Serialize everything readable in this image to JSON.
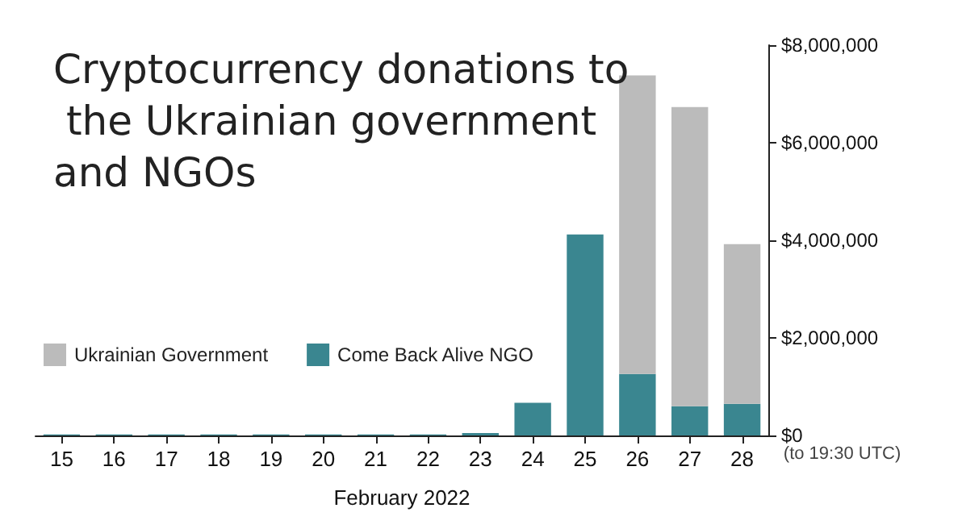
{
  "chart_data": {
    "type": "bar",
    "title": "Cryptocurrency donations to the Ukrainian government and NGOs",
    "xlabel": "February 2022",
    "categories": [
      "15",
      "16",
      "17",
      "18",
      "19",
      "20",
      "21",
      "22",
      "23",
      "24",
      "25",
      "26",
      "27",
      "28"
    ],
    "stacked": true,
    "series": [
      {
        "name": "Come Back Alive NGO",
        "color": "#3a8690",
        "values": [
          20000,
          20000,
          20000,
          20000,
          20000,
          20000,
          20000,
          20000,
          50000,
          670000,
          4120000,
          1260000,
          600000,
          650000
        ]
      },
      {
        "name": "Ukrainian Government",
        "color": "#bbbbbb",
        "values": [
          0,
          0,
          0,
          0,
          0,
          0,
          0,
          0,
          0,
          0,
          0,
          6120000,
          6130000,
          3270000
        ]
      }
    ],
    "ylim": [
      0,
      8000000
    ],
    "yticks": [
      {
        "value": 0,
        "label": "$0"
      },
      {
        "value": 2000000,
        "label": "$2,000,000"
      },
      {
        "value": 4000000,
        "label": "$4,000,000"
      },
      {
        "value": 6000000,
        "label": "$6,000,000"
      },
      {
        "value": 8000000,
        "label": "$8,000,000"
      }
    ],
    "annotations": [
      {
        "text": "(to 19:30 UTC)",
        "x": "28",
        "y": 0
      }
    ],
    "grid": false,
    "legend": "left"
  }
}
